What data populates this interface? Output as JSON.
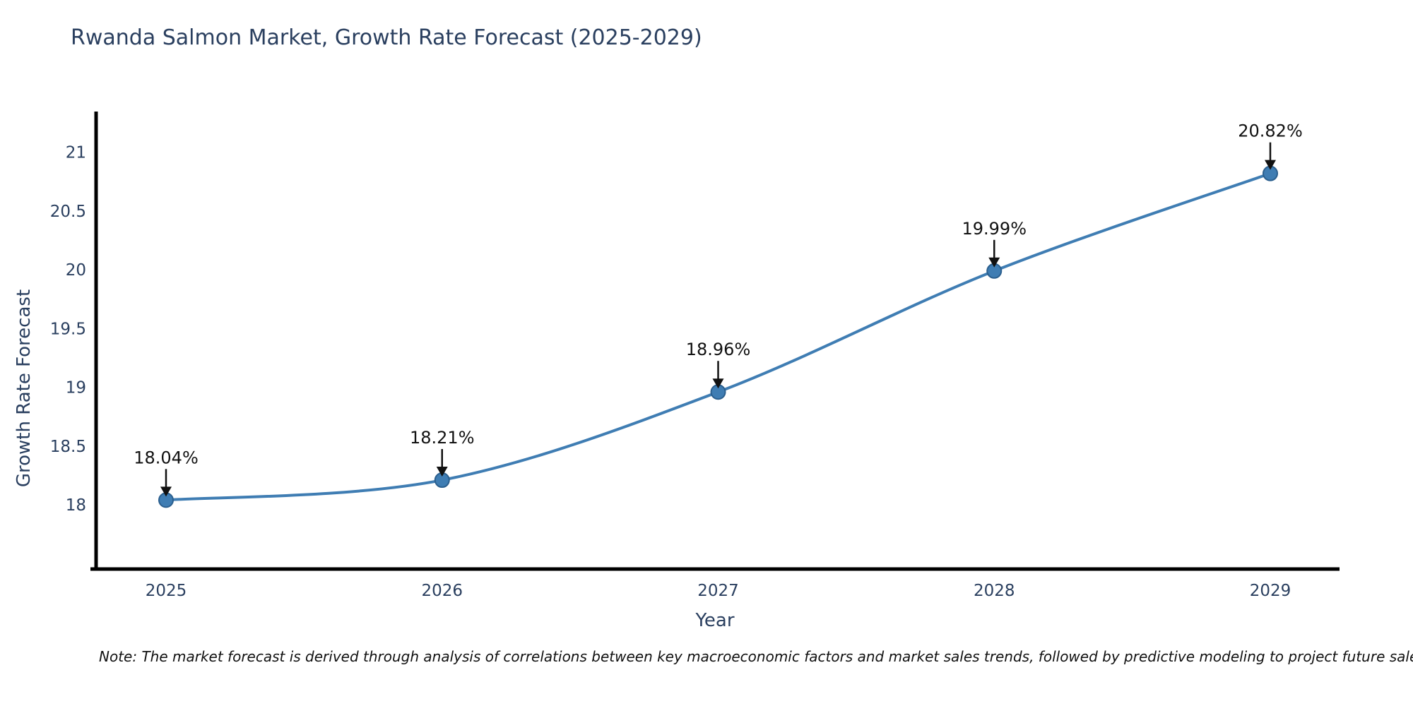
{
  "title": "Rwanda Salmon Market, Growth Rate Forecast (2025-2029)",
  "note": "Note: The market forecast is derived through analysis of correlations between key macroeconomic factors and market sales trends, followed by predictive modeling to project future sales.",
  "chart_data": {
    "type": "line",
    "title": "Rwanda Salmon Market, Growth Rate Forecast (2025-2029)",
    "xlabel": "Year",
    "ylabel": "Growth Rate Forecast",
    "x": [
      "2025",
      "2026",
      "2027",
      "2028",
      "2029"
    ],
    "series": [
      {
        "name": "Growth Rate Forecast",
        "values": [
          18.04,
          18.21,
          18.96,
          19.99,
          20.82
        ],
        "point_labels": [
          "18.04%",
          "18.21%",
          "18.96%",
          "19.99%",
          "20.82%"
        ]
      }
    ],
    "yticks": [
      18,
      18.5,
      19,
      19.5,
      20,
      20.5,
      21
    ],
    "ylim": [
      17.45,
      21.35
    ],
    "grid": false,
    "legend_position": "none",
    "curve": "spline",
    "colors": {
      "line": "#3f7db3",
      "marker_fill": "#3f7db3",
      "marker_edge": "#2b5f8e",
      "axis": "#000000",
      "annotation": "#111111",
      "text": "#2a3f5f"
    }
  }
}
